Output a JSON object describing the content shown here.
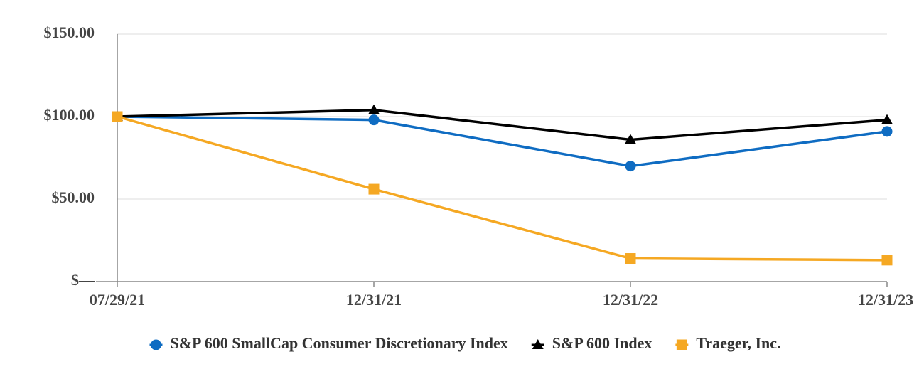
{
  "chart_data": {
    "type": "line",
    "categories": [
      "07/29/21",
      "12/31/21",
      "12/31/22",
      "12/31/23"
    ],
    "series": [
      {
        "name": "S&P 600 SmallCap Consumer Discretionary Index",
        "color": "#0f6cc2",
        "marker": "circle",
        "values": [
          100,
          98,
          70,
          91
        ]
      },
      {
        "name": "S&P 600 Index",
        "color": "#000000",
        "marker": "triangle",
        "values": [
          100,
          104,
          86,
          98
        ]
      },
      {
        "name": "Traeger, Inc.",
        "color": "#f5a823",
        "marker": "square",
        "values": [
          100,
          56,
          14,
          13
        ]
      }
    ],
    "ylim": [
      0,
      150
    ],
    "yticks": [
      {
        "value": 0,
        "label": "$—"
      },
      {
        "value": 50,
        "label": "$50.00"
      },
      {
        "value": 100,
        "label": "$100.00"
      },
      {
        "value": 150,
        "label": "$150.00"
      }
    ],
    "grid": true,
    "legend": "bottom"
  }
}
